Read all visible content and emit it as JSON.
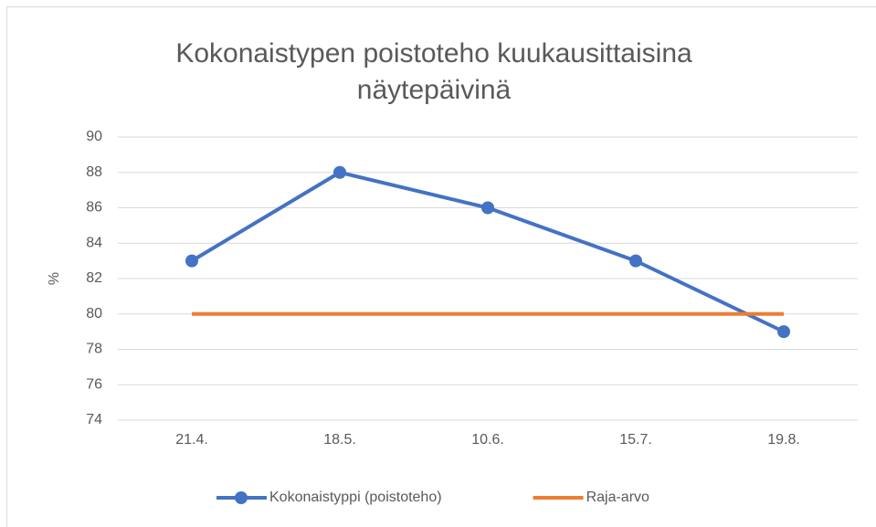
{
  "chart_data": {
    "type": "line",
    "title": [
      "Kokonaistypen poistoteho kuukausittaisina",
      "näytepäivinä"
    ],
    "y_label": "%",
    "categories": [
      "21.4.",
      "18.5.",
      "10.6.",
      "15.7.",
      "19.8."
    ],
    "series": [
      {
        "name": "Kokonaistyppi (poistoteho)",
        "color": "#4472c4",
        "markers": true,
        "values": [
          83,
          88,
          86,
          83,
          79
        ]
      },
      {
        "name": "Raja-arvo",
        "color": "#ed7d31",
        "markers": false,
        "values": [
          80,
          80,
          80,
          80,
          80
        ]
      }
    ],
    "ylim": [
      74,
      90
    ],
    "yticks": [
      74,
      76,
      78,
      80,
      82,
      84,
      86,
      88,
      90
    ],
    "grid": true,
    "legend": "bottom"
  }
}
